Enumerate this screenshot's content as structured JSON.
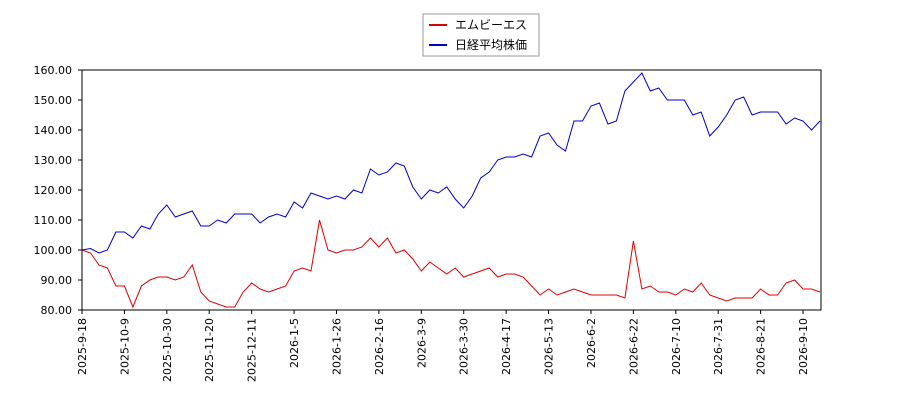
{
  "chart_data": {
    "type": "line",
    "categories": [
      "2025-9-18",
      null,
      null,
      null,
      null,
      "2025-10-9",
      null,
      null,
      null,
      null,
      "2025-10-30",
      null,
      null,
      null,
      null,
      "2025-11-20",
      null,
      null,
      null,
      null,
      "2025-12-11",
      null,
      null,
      null,
      null,
      "2026-1-5",
      null,
      null,
      null,
      null,
      "2026-1-26",
      null,
      null,
      null,
      null,
      "2026-2-16",
      null,
      null,
      null,
      null,
      "2026-3-9",
      null,
      null,
      null,
      null,
      "2026-3-30",
      null,
      null,
      null,
      null,
      "2026-4-17",
      null,
      null,
      null,
      null,
      "2026-5-13",
      null,
      null,
      null,
      null,
      "2026-6-2",
      null,
      null,
      null,
      null,
      "2026-6-22",
      null,
      null,
      null,
      null,
      "2026-7-10",
      null,
      null,
      null,
      null,
      "2026-7-31",
      null,
      null,
      null,
      null,
      "2026-8-21",
      null,
      null,
      null,
      null,
      "2026-9-10",
      null,
      null
    ],
    "series": [
      {
        "name": "エムビーエス",
        "color": "#dd0000",
        "values": [
          100,
          99,
          95,
          94,
          88,
          88,
          81,
          88,
          90,
          91,
          91,
          90,
          91,
          95,
          86,
          83,
          82,
          81,
          81,
          86,
          89,
          87,
          86,
          87,
          88,
          93,
          94,
          93,
          110,
          100,
          99,
          100,
          100,
          101,
          104,
          101,
          104,
          99,
          100,
          97,
          93,
          96,
          94,
          92,
          94,
          91,
          92,
          93,
          94,
          91,
          92,
          92,
          91,
          88,
          85,
          87,
          85,
          86,
          87,
          86,
          85,
          85,
          85,
          85,
          84,
          103,
          87,
          88,
          86,
          86,
          85,
          87,
          86,
          89,
          85,
          84,
          83,
          84,
          84,
          84,
          87,
          85,
          85,
          89,
          90,
          87,
          87,
          86
        ]
      },
      {
        "name": "日経平均株価",
        "color": "#0000cc",
        "values": [
          100,
          100.5,
          99,
          100,
          106,
          106,
          104,
          108,
          107,
          112,
          115,
          111,
          112,
          113,
          108,
          108,
          110,
          109,
          112,
          112,
          112,
          109,
          111,
          112,
          111,
          116,
          114,
          119,
          118,
          117,
          118,
          117,
          120,
          119,
          127,
          125,
          126,
          129,
          128,
          121,
          117,
          120,
          119,
          121,
          117,
          114,
          118,
          124,
          126,
          130,
          131,
          131,
          132,
          131,
          138,
          139,
          135,
          133,
          143,
          143,
          148,
          149,
          142,
          143,
          153,
          156,
          159,
          153,
          154,
          150,
          150,
          150,
          145,
          146,
          138,
          141,
          145,
          150,
          151,
          145,
          146,
          146,
          146,
          142,
          144,
          143,
          140,
          143
        ]
      }
    ],
    "ylim": [
      80,
      160
    ],
    "yticks": [
      {
        "value": 80,
        "label": "80.00"
      },
      {
        "value": 90,
        "label": "90.00"
      },
      {
        "value": 100,
        "label": "100.00"
      },
      {
        "value": 110,
        "label": "110.00"
      },
      {
        "value": 120,
        "label": "120.00"
      },
      {
        "value": 130,
        "label": "130.00"
      },
      {
        "value": 140,
        "label": "140.00"
      },
      {
        "value": 150,
        "label": "150.00"
      },
      {
        "value": 160,
        "label": "160.00"
      }
    ],
    "grid": true,
    "legend": "top"
  }
}
